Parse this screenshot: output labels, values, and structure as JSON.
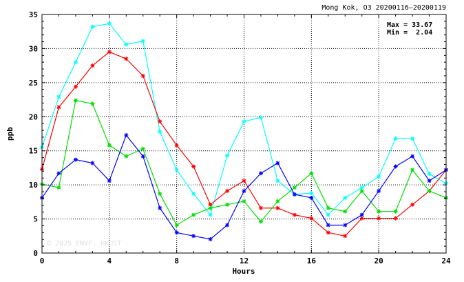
{
  "chart_data": {
    "type": "line",
    "title": "Mong Kok, O3 20200116–20200119",
    "xlabel": "Hours",
    "ylabel": "ppb",
    "xlim": [
      0,
      24
    ],
    "ylim": [
      0,
      35
    ],
    "x_ticks": [
      0,
      4,
      8,
      12,
      16,
      20,
      24
    ],
    "y_ticks": [
      0,
      5,
      10,
      15,
      20,
      25,
      30,
      35
    ],
    "grid": true,
    "stats": {
      "max_label": "Max = 33.67",
      "min_label": "Min =  2.04"
    },
    "watermark": "© 2025  ENVF, HKUST",
    "x": [
      0,
      1,
      2,
      3,
      4,
      5,
      6,
      7,
      8,
      9,
      10,
      11,
      12,
      13,
      14,
      15,
      16,
      17,
      18,
      19,
      20,
      21,
      22,
      23,
      24
    ],
    "series": [
      {
        "color": "#00ffff",
        "values": [
          15.5,
          22.9,
          28.0,
          33.2,
          33.67,
          30.6,
          31.1,
          17.8,
          12.2,
          8.7,
          5.6,
          14.3,
          19.3,
          19.9,
          10.6,
          8.6,
          8.8,
          5.6,
          8.1,
          9.6,
          11.2,
          16.8,
          16.8,
          11.6,
          10.2
        ]
      },
      {
        "color": "#ff0000",
        "values": [
          12.3,
          21.4,
          24.4,
          27.5,
          29.5,
          28.5,
          26.0,
          19.3,
          15.8,
          12.7,
          7.1,
          9.1,
          10.6,
          6.6,
          6.6,
          5.6,
          5.1,
          3.0,
          2.5,
          5.1,
          5.1,
          5.1,
          7.1,
          9.1,
          12.2
        ]
      },
      {
        "color": "#00dd00",
        "values": [
          10.1,
          9.6,
          22.4,
          21.9,
          15.8,
          14.2,
          15.3,
          8.7,
          4.1,
          5.6,
          6.6,
          7.1,
          7.6,
          4.6,
          7.6,
          9.6,
          11.7,
          6.6,
          6.1,
          9.1,
          6.1,
          6.1,
          12.2,
          9.1,
          8.1
        ]
      },
      {
        "color": "#0000ff",
        "values": [
          8.1,
          11.7,
          13.7,
          13.2,
          10.6,
          17.3,
          14.2,
          6.6,
          3.0,
          2.5,
          2.04,
          4.1,
          9.1,
          11.7,
          13.2,
          8.6,
          8.1,
          4.1,
          4.1,
          5.6,
          9.1,
          12.7,
          14.2,
          10.6,
          12.2
        ]
      }
    ]
  }
}
